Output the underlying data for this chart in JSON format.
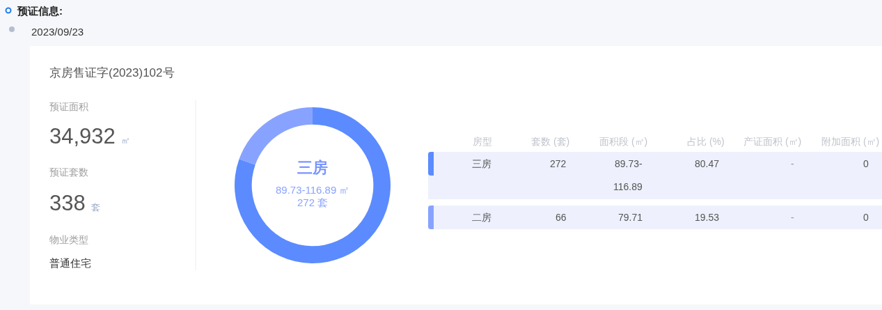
{
  "chart_data": [
    {
      "type": "other",
      "title": "预证信息:",
      "subtitle": "2023/09/23",
      "annotations": [
        "京房售证字(2023)102号",
        "预证面积",
        "34,932",
        "㎡",
        "预证套数",
        "338",
        "套",
        "物业类型",
        "普通住宅"
      ]
    },
    {
      "type": "donut",
      "categories": [
        "三房",
        "二房"
      ],
      "values": [
        80.47,
        19.53
      ],
      "colors": [
        "#5b8bff",
        "#88a3ff"
      ],
      "annotations": [
        "89.73-116.89 ㎡",
        "272 套"
      ]
    },
    {
      "type": "other",
      "categories": [
        "房型",
        "套数 (套)",
        "面积段 (㎡)",
        "占比 (%)",
        "产证面积 (㎡)",
        "附加面积 (㎡)"
      ],
      "cell_labels": [
        [
          "272",
          "89.73-116.89",
          "80.47",
          "-",
          "0"
        ],
        [
          "66",
          "79.71",
          "19.53",
          "-",
          "0"
        ]
      ]
    }
  ]
}
